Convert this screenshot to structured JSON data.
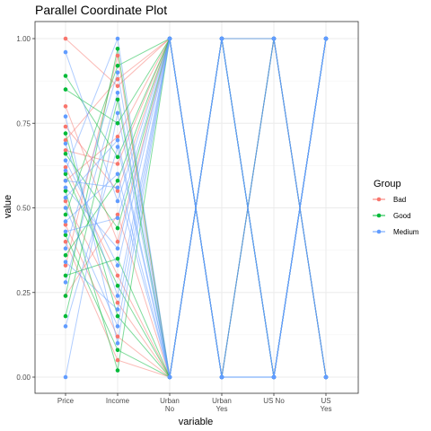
{
  "chart_data": {
    "type": "line",
    "subtype": "parallel-coordinates",
    "title": "Parallel Coordinate Plot",
    "xlabel": "variable",
    "ylabel": "value",
    "ylim": [
      0,
      1
    ],
    "y_ticks": [
      0,
      0.25,
      0.5,
      0.75,
      1.0
    ],
    "y_tick_labels": [
      "0.00",
      "0.25",
      "0.50",
      "0.75",
      "1.00"
    ],
    "categories": [
      "Price",
      "Income",
      "Urban No",
      "Urban Yes",
      "US No",
      "US Yes"
    ],
    "category_labels": [
      [
        "Price"
      ],
      [
        "Income"
      ],
      [
        "Urban",
        "No"
      ],
      [
        "Urban",
        "Yes"
      ],
      [
        "US No"
      ],
      [
        "US",
        "Yes"
      ]
    ],
    "grid": true,
    "legend": {
      "title": "Group",
      "position": "right",
      "entries": [
        {
          "name": "Bad",
          "color": "#F8766D"
        },
        {
          "name": "Good",
          "color": "#00BA38"
        },
        {
          "name": "Medium",
          "color": "#619CFF"
        }
      ]
    },
    "series": [
      {
        "name": "Bad",
        "values": [
          1.0,
          0.86,
          1,
          0,
          1,
          0
        ]
      },
      {
        "name": "Bad",
        "values": [
          0.62,
          0.3,
          0,
          1,
          1,
          0
        ]
      },
      {
        "name": "Bad",
        "values": [
          0.74,
          0.55,
          1,
          0,
          0,
          1
        ]
      },
      {
        "name": "Bad",
        "values": [
          0.45,
          0.12,
          0,
          1,
          0,
          1
        ]
      },
      {
        "name": "Bad",
        "values": [
          0.58,
          0.71,
          1,
          0,
          1,
          0
        ]
      },
      {
        "name": "Bad",
        "values": [
          0.33,
          0.95,
          0,
          1,
          0,
          1
        ]
      },
      {
        "name": "Bad",
        "values": [
          0.8,
          0.4,
          1,
          0,
          0,
          1
        ]
      },
      {
        "name": "Bad",
        "values": [
          0.52,
          0.22,
          0,
          1,
          1,
          0
        ]
      },
      {
        "name": "Bad",
        "values": [
          0.67,
          0.63,
          1,
          0,
          0,
          1
        ]
      },
      {
        "name": "Bad",
        "values": [
          0.4,
          0.05,
          0,
          1,
          0,
          1
        ]
      },
      {
        "name": "Bad",
        "values": [
          0.7,
          0.88,
          1,
          0,
          1,
          0
        ]
      },
      {
        "name": "Bad",
        "values": [
          0.24,
          0.48,
          0,
          1,
          0,
          1
        ]
      },
      {
        "name": "Good",
        "values": [
          0.89,
          0.65,
          1,
          0,
          0,
          1
        ]
      },
      {
        "name": "Good",
        "values": [
          0.18,
          0.82,
          0,
          1,
          0,
          1
        ]
      },
      {
        "name": "Good",
        "values": [
          0.55,
          0.02,
          1,
          0,
          1,
          0
        ]
      },
      {
        "name": "Good",
        "values": [
          0.3,
          0.35,
          0,
          1,
          0,
          1
        ]
      },
      {
        "name": "Good",
        "values": [
          0.48,
          0.92,
          1,
          0,
          0,
          1
        ]
      },
      {
        "name": "Good",
        "values": [
          0.72,
          0.18,
          0,
          1,
          1,
          0
        ]
      },
      {
        "name": "Good",
        "values": [
          0.36,
          0.58,
          1,
          0,
          0,
          1
        ]
      },
      {
        "name": "Good",
        "values": [
          0.6,
          0.27,
          0,
          1,
          0,
          1
        ]
      },
      {
        "name": "Good",
        "values": [
          0.85,
          0.75,
          1,
          0,
          1,
          0
        ]
      },
      {
        "name": "Good",
        "values": [
          0.42,
          0.08,
          0,
          1,
          0,
          1
        ]
      },
      {
        "name": "Good",
        "values": [
          0.66,
          0.44,
          1,
          0,
          0,
          1
        ]
      },
      {
        "name": "Good",
        "values": [
          0.24,
          0.97,
          0,
          1,
          0,
          1
        ]
      },
      {
        "name": "Medium",
        "values": [
          0.96,
          0.52,
          1,
          0,
          0,
          1
        ]
      },
      {
        "name": "Medium",
        "values": [
          0.0,
          0.78,
          0,
          1,
          1,
          0
        ]
      },
      {
        "name": "Medium",
        "values": [
          0.5,
          0.15,
          1,
          0,
          0,
          1
        ]
      },
      {
        "name": "Medium",
        "values": [
          0.15,
          0.68,
          0,
          1,
          0,
          1
        ]
      },
      {
        "name": "Medium",
        "values": [
          0.64,
          0.33,
          1,
          0,
          1,
          0
        ]
      },
      {
        "name": "Medium",
        "values": [
          0.38,
          0.9,
          0,
          1,
          0,
          1
        ]
      },
      {
        "name": "Medium",
        "values": [
          0.77,
          0.1,
          1,
          0,
          0,
          1
        ]
      },
      {
        "name": "Medium",
        "values": [
          0.46,
          0.6,
          0,
          1,
          1,
          0
        ]
      },
      {
        "name": "Medium",
        "values": [
          0.56,
          0.38,
          1,
          0,
          0,
          1
        ]
      },
      {
        "name": "Medium",
        "values": [
          0.28,
          0.84,
          0,
          1,
          0,
          1
        ]
      },
      {
        "name": "Medium",
        "values": [
          0.69,
          0.24,
          1,
          0,
          1,
          0
        ]
      },
      {
        "name": "Medium",
        "values": [
          0.53,
          0.7,
          0,
          1,
          0,
          1
        ]
      },
      {
        "name": "Medium",
        "values": [
          0.43,
          0.47,
          1,
          0,
          0,
          1
        ]
      },
      {
        "name": "Medium",
        "values": [
          0.61,
          1.0,
          0,
          1,
          0,
          1
        ]
      },
      {
        "name": "Medium",
        "values": [
          0.34,
          0.2,
          1,
          0,
          1,
          0
        ]
      },
      {
        "name": "Medium",
        "values": [
          0.58,
          0.56,
          0,
          1,
          0,
          1
        ]
      }
    ]
  }
}
